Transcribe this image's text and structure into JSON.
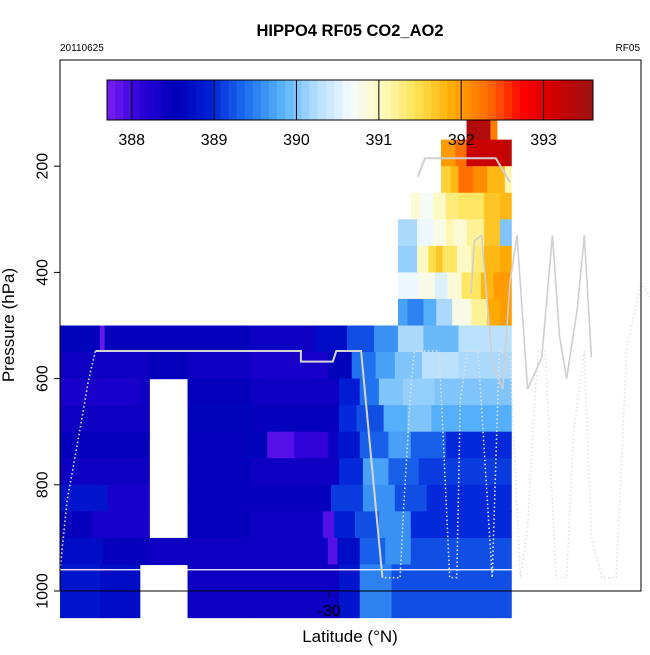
{
  "chart_data": {
    "type": "heatmap",
    "title": "HIPPO4 RF05 CO2_AO2",
    "subtitle_left": "20110625",
    "subtitle_right": "RF05",
    "xlabel": "Latitude (°N)",
    "ylabel": "Pressure (hPa)",
    "xlim": [
      -37.6,
      -21.2
    ],
    "ylim": [
      1000,
      0
    ],
    "x_ticks": [
      -30
    ],
    "x_tick_labels": [
      "-30"
    ],
    "y_ticks": [
      200,
      400,
      600,
      800,
      1000
    ],
    "y_tick_labels": [
      "200",
      "400",
      "600",
      "800",
      "1000"
    ],
    "colorbar": {
      "min": 387.7,
      "max": 393.6,
      "ticks": [
        388,
        389,
        390,
        391,
        392,
        393
      ],
      "tick_labels": [
        "388",
        "389",
        "390",
        "391",
        "392",
        "393"
      ],
      "stops": [
        "#7a1ff5",
        "#2a00d8",
        "#0000b8",
        "#0022d8",
        "#1e70ee",
        "#56b0fa",
        "#b0dcfc",
        "#f4fbff",
        "#fff9b8",
        "#ffe04a",
        "#ffa800",
        "#ff6a00",
        "#ff0000",
        "#cc0000",
        "#991414"
      ]
    },
    "grid": {
      "x0": -37.6,
      "dx": 0.45,
      "y0": 125,
      "dy": 50,
      "cols": 36,
      "rows": 19
    },
    "rows": [
      [
        [
          25.5,
          27.0,
          393.4
        ],
        [
          27.0,
          27.4,
          392.2
        ]
      ],
      [
        [
          23.9,
          24.8,
          392.0
        ],
        [
          24.8,
          25.5,
          392.3
        ],
        [
          25.5,
          27.9,
          393.2
        ],
        [
          27.9,
          28.3,
          393.3
        ]
      ],
      [
        [
          23.9,
          24.5,
          391.6
        ],
        [
          24.5,
          25.0,
          391.8
        ],
        [
          25.0,
          25.9,
          392.3
        ],
        [
          25.9,
          26.8,
          392.1
        ],
        [
          26.8,
          27.9,
          391.8
        ],
        [
          27.9,
          28.3,
          391.1
        ]
      ],
      [
        [
          22.0,
          22.6,
          390.9
        ],
        [
          22.6,
          23.4,
          390.7
        ],
        [
          23.4,
          24.2,
          391.0
        ],
        [
          24.2,
          25.0,
          391.3
        ],
        [
          25.0,
          25.7,
          391.4
        ],
        [
          25.7,
          26.6,
          391.4
        ],
        [
          26.6,
          27.6,
          391.7
        ],
        [
          27.6,
          28.3,
          391.8
        ]
      ],
      [
        [
          21.2,
          22.4,
          390.2
        ],
        [
          22.4,
          23.4,
          390.6
        ],
        [
          23.4,
          24.2,
          390.8
        ],
        [
          24.2,
          24.7,
          391.1
        ],
        [
          24.7,
          25.5,
          390.9
        ],
        [
          25.5,
          26.6,
          391.2
        ],
        [
          26.6,
          27.6,
          391.7
        ],
        [
          27.6,
          28.3,
          390.0
        ]
      ],
      [
        [
          21.2,
          22.4,
          390.1
        ],
        [
          22.4,
          23.1,
          391.0
        ],
        [
          23.1,
          23.6,
          391.5
        ],
        [
          23.6,
          24.0,
          391.7
        ],
        [
          24.0,
          24.9,
          391.4
        ],
        [
          24.9,
          25.8,
          391.0
        ],
        [
          25.8,
          26.6,
          391.3
        ],
        [
          26.6,
          27.6,
          391.8
        ],
        [
          27.6,
          28.3,
          391.9
        ]
      ],
      [
        [
          21.2,
          22.5,
          390.6
        ],
        [
          22.5,
          23.5,
          390.8
        ],
        [
          23.5,
          24.3,
          390.5
        ],
        [
          24.3,
          25.2,
          390.9
        ],
        [
          25.2,
          26.4,
          391.4
        ],
        [
          26.4,
          27.2,
          391.8
        ],
        [
          27.2,
          28.3,
          392.0
        ]
      ],
      [
        [
          21.2,
          21.8,
          389.7
        ],
        [
          21.8,
          22.8,
          389.5
        ],
        [
          22.8,
          23.6,
          389.8
        ],
        [
          23.6,
          24.6,
          390.2
        ],
        [
          24.6,
          25.8,
          390.8
        ],
        [
          25.8,
          26.8,
          391.2
        ],
        [
          26.8,
          27.6,
          391.9
        ],
        [
          27.6,
          28.3,
          392.0
        ]
      ],
      [
        [
          0.0,
          2.0,
          388.6
        ],
        [
          2.0,
          2.5,
          388.5
        ],
        [
          2.5,
          2.8,
          387.8
        ],
        [
          2.8,
          8.0,
          388.5
        ],
        [
          8.0,
          12.0,
          388.5
        ],
        [
          12.0,
          16.0,
          388.4
        ],
        [
          16.0,
          18.0,
          388.7
        ],
        [
          18.0,
          19.7,
          389.2
        ],
        [
          19.7,
          21.2,
          389.6
        ],
        [
          21.2,
          22.8,
          390.2
        ],
        [
          22.8,
          25.0,
          389.9
        ],
        [
          25.0,
          28.3,
          390.3
        ]
      ],
      [
        [
          0.0,
          5.6,
          388.4
        ],
        [
          5.6,
          8.0,
          388.5
        ],
        [
          8.0,
          12.0,
          388.4
        ],
        [
          12.0,
          16.8,
          388.3
        ],
        [
          16.8,
          18.3,
          388.6
        ],
        [
          18.3,
          19.8,
          389.4
        ],
        [
          19.8,
          21.0,
          389.7
        ],
        [
          21.0,
          22.7,
          390.0
        ],
        [
          22.7,
          25.0,
          390.3
        ],
        [
          25.0,
          28.3,
          390.2
        ]
      ],
      [
        [
          0.0,
          5.0,
          388.3
        ],
        [
          5.0,
          5.6,
          388.4
        ],
        [
          8.0,
          12.0,
          388.5
        ],
        [
          12.0,
          17.5,
          388.4
        ],
        [
          17.5,
          18.8,
          388.9
        ],
        [
          18.8,
          20.0,
          389.4
        ],
        [
          20.0,
          21.5,
          390.0
        ],
        [
          21.5,
          23.5,
          390.1
        ],
        [
          23.5,
          28.3,
          390.0
        ]
      ],
      [
        [
          0.0,
          5.6,
          388.4
        ],
        [
          8.0,
          12.0,
          388.6
        ],
        [
          12.0,
          17.5,
          388.5
        ],
        [
          17.5,
          18.6,
          389.0
        ],
        [
          18.6,
          20.3,
          389.2
        ],
        [
          20.3,
          21.8,
          389.8
        ],
        [
          21.8,
          23.3,
          390.0
        ],
        [
          23.3,
          28.3,
          389.8
        ]
      ],
      [
        [
          0.0,
          5.6,
          388.5
        ],
        [
          8.0,
          11.5,
          388.5
        ],
        [
          11.5,
          13.0,
          388.6
        ],
        [
          13.0,
          14.7,
          387.9
        ],
        [
          14.7,
          16.8,
          388.1
        ],
        [
          16.8,
          17.4,
          388.4
        ],
        [
          17.4,
          18.8,
          388.8
        ],
        [
          18.8,
          20.6,
          389.3
        ],
        [
          20.6,
          22.0,
          389.7
        ],
        [
          22.0,
          24.2,
          389.3
        ],
        [
          24.2,
          28.3,
          389.0
        ]
      ],
      [
        [
          0.0,
          5.6,
          388.4
        ],
        [
          8.0,
          12.0,
          388.5
        ],
        [
          12.0,
          17.5,
          388.4
        ],
        [
          17.5,
          19.0,
          389.0
        ],
        [
          19.0,
          20.6,
          389.7
        ],
        [
          20.6,
          22.5,
          389.3
        ],
        [
          22.5,
          28.3,
          389.1
        ]
      ],
      [
        [
          0.0,
          3.0,
          388.8
        ],
        [
          3.0,
          5.6,
          388.3
        ],
        [
          8.0,
          12.0,
          388.5
        ],
        [
          12.0,
          17.0,
          388.5
        ],
        [
          17.0,
          19.0,
          389.1
        ],
        [
          19.0,
          21.0,
          389.6
        ],
        [
          21.0,
          23.0,
          389.2
        ],
        [
          23.0,
          28.3,
          389.0
        ]
      ],
      [
        [
          0.0,
          2.0,
          388.5
        ],
        [
          2.0,
          5.6,
          388.3
        ],
        [
          8.0,
          12.0,
          388.5
        ],
        [
          12.0,
          16.5,
          388.4
        ],
        [
          16.5,
          17.2,
          387.9
        ],
        [
          17.2,
          18.5,
          388.9
        ],
        [
          18.5,
          20.0,
          389.2
        ],
        [
          20.0,
          22.0,
          389.6
        ],
        [
          22.0,
          28.3,
          389.0
        ]
      ],
      [
        [
          0.0,
          2.7,
          388.7
        ],
        [
          2.7,
          5.6,
          388.5
        ],
        [
          5.6,
          8.0,
          388.4
        ],
        [
          8.0,
          12.0,
          388.4
        ],
        [
          12.0,
          16.8,
          388.4
        ],
        [
          16.8,
          17.4,
          387.9
        ],
        [
          17.4,
          18.8,
          388.7
        ],
        [
          18.8,
          20.4,
          389.3
        ],
        [
          20.4,
          22.0,
          389.6
        ],
        [
          22.0,
          28.3,
          389.2
        ]
      ],
      [
        [
          0.0,
          2.5,
          388.8
        ],
        [
          2.5,
          5.0,
          388.7
        ],
        [
          8.0,
          12.0,
          388.4
        ],
        [
          12.0,
          17.5,
          388.4
        ],
        [
          17.5,
          18.8,
          388.8
        ],
        [
          18.8,
          20.8,
          389.5
        ],
        [
          20.8,
          28.3,
          389.2
        ]
      ],
      [
        [
          0.0,
          2.5,
          388.8
        ],
        [
          2.5,
          5.0,
          388.7
        ],
        [
          8.0,
          12.0,
          388.4
        ],
        [
          12.0,
          17.5,
          388.4
        ],
        [
          17.5,
          18.8,
          388.8
        ],
        [
          18.8,
          20.8,
          389.5
        ],
        [
          20.8,
          28.3,
          389.2
        ]
      ]
    ],
    "flight_track": [
      [
        -37.6,
        960
      ],
      [
        -37.4,
        830
      ],
      [
        -37.1,
        720
      ],
      [
        -36.8,
        605
      ],
      [
        -36.6,
        548
      ],
      [
        -34.0,
        548
      ],
      [
        -31.2,
        548
      ],
      [
        -30.8,
        548
      ],
      [
        -30.8,
        568
      ],
      [
        -29.9,
        568
      ],
      [
        -29.8,
        548
      ],
      [
        -29.1,
        548
      ],
      [
        -28.5,
        975
      ],
      [
        -28.0,
        975
      ],
      [
        -27.9,
        845
      ],
      [
        -27.7,
        620
      ],
      [
        -27.6,
        548
      ],
      [
        -26.9,
        548
      ],
      [
        -26.6,
        975
      ],
      [
        -26.4,
        975
      ],
      [
        -26.3,
        640
      ],
      [
        -26.1,
        548
      ],
      [
        -25.8,
        548
      ],
      [
        -25.4,
        975
      ],
      [
        -25.2,
        548
      ],
      [
        -24.9,
        560
      ],
      [
        -24.6,
        975
      ],
      [
        -24.4,
        880
      ],
      [
        -24.2,
        640
      ],
      [
        -24.1,
        548
      ],
      [
        -23.9,
        548
      ],
      [
        -23.6,
        975
      ],
      [
        -23.3,
        975
      ],
      [
        -23.1,
        700
      ],
      [
        -22.8,
        548
      ],
      [
        -22.6,
        900
      ],
      [
        -22.3,
        975
      ],
      [
        -21.9,
        975
      ],
      [
        -21.6,
        540
      ],
      [
        -21.2,
        420
      ],
      [
        -20.9,
        450
      ],
      [
        -20.4,
        975
      ]
    ],
    "flight_track_upper": [
      [
        -26.0,
        440
      ],
      [
        -25.9,
        340
      ],
      [
        -25.7,
        330
      ],
      [
        -25.4,
        570
      ],
      [
        -25.1,
        620
      ],
      [
        -24.9,
        420
      ],
      [
        -24.7,
        330
      ],
      [
        -24.4,
        620
      ],
      [
        -24.0,
        560
      ],
      [
        -23.7,
        330
      ],
      [
        -23.5,
        520
      ],
      [
        -23.3,
        600
      ],
      [
        -23.0,
        470
      ],
      [
        -22.8,
        330
      ],
      [
        -22.6,
        560
      ]
    ]
  }
}
